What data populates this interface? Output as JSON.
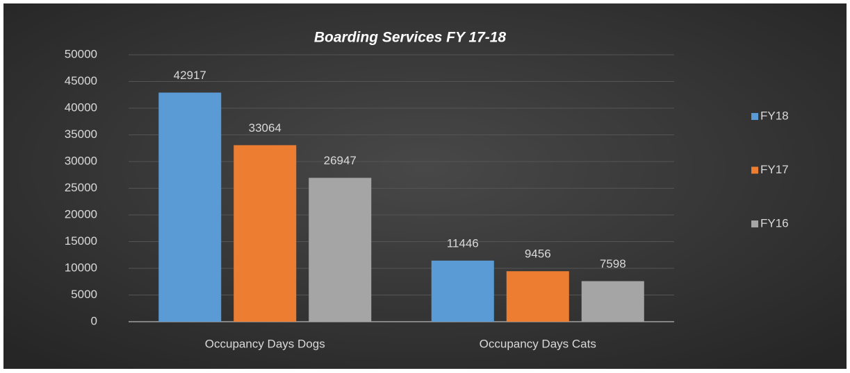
{
  "chart_data": {
    "type": "bar",
    "title": "Boarding Services FY 17-18",
    "categories": [
      "Occupancy Days Dogs",
      "Occupancy Days Cats"
    ],
    "series": [
      {
        "name": "FY18",
        "color": "#5b9bd5",
        "values": [
          42917,
          11446
        ]
      },
      {
        "name": "FY17",
        "color": "#ed7d31",
        "values": [
          33064,
          9456
        ]
      },
      {
        "name": "FY16",
        "color": "#a5a5a5",
        "values": [
          26947,
          7598
        ]
      }
    ],
    "ylim": [
      0,
      50000
    ],
    "yticks": [
      0,
      5000,
      10000,
      15000,
      20000,
      25000,
      30000,
      35000,
      40000,
      45000,
      50000
    ],
    "grid": true,
    "legend": "right"
  }
}
